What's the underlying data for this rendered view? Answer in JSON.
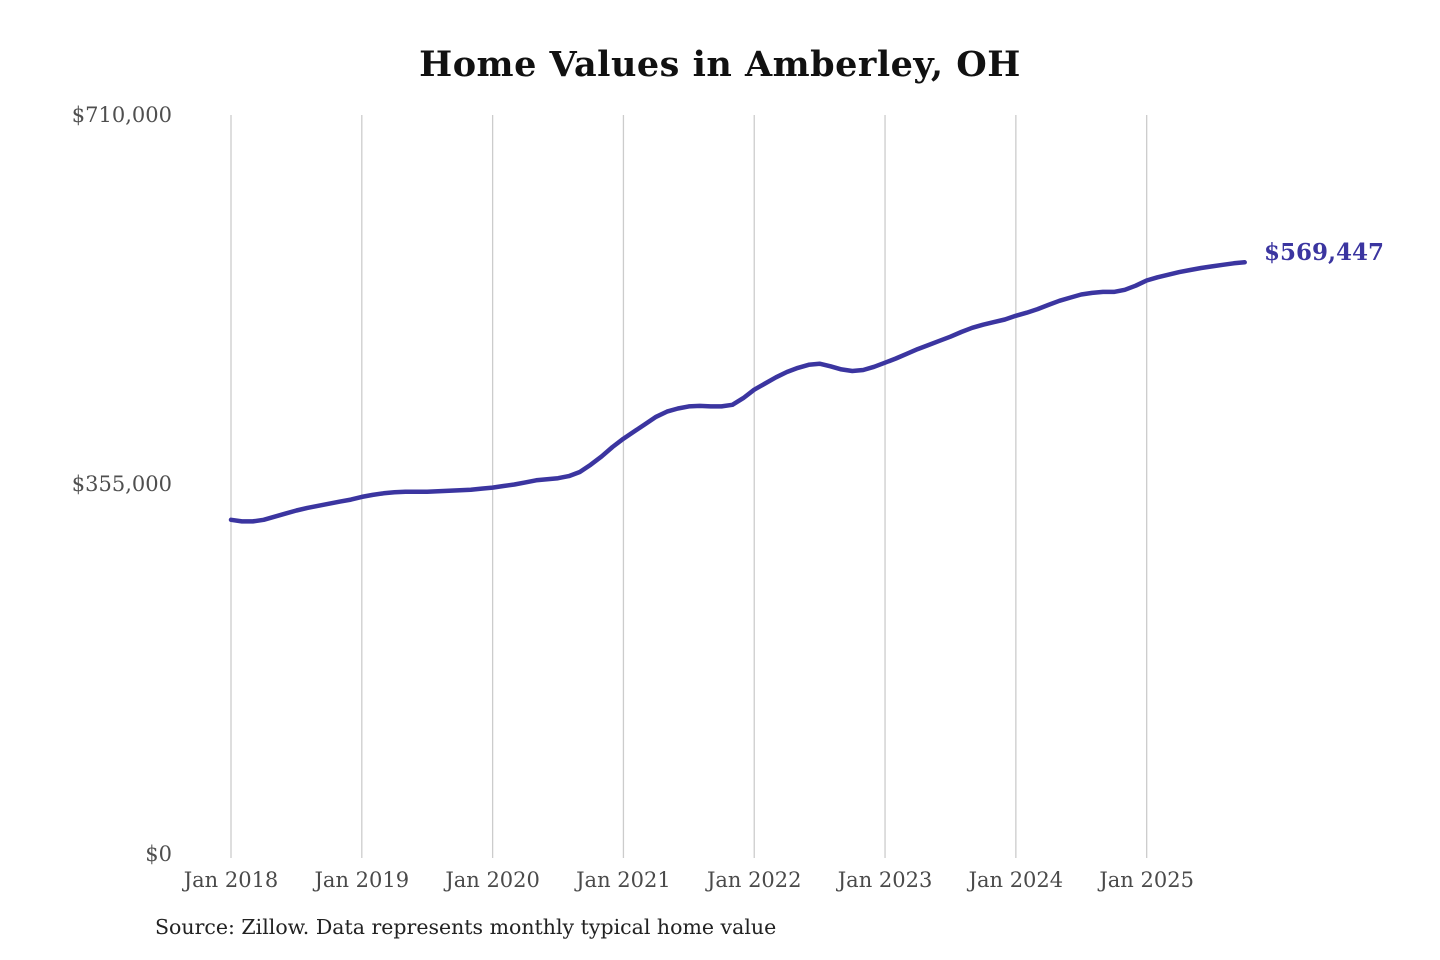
{
  "title": "Home Values in Amberley, OH",
  "end_label": "$569,447",
  "source_note": "Source: Zillow. Data represents monthly typical home value",
  "colors": {
    "line": "#3b35a0",
    "grid": "#cccccc",
    "title": "#111111",
    "axis_label": "#4a4a4a",
    "end_label": "#3b35a0",
    "background": "#ffffff"
  },
  "chart_data": {
    "type": "line",
    "title": "Home Values in Amberley, OH",
    "xlabel": "",
    "ylabel": "",
    "ylim": [
      0,
      710000
    ],
    "grid": "vertical-only",
    "legend": "none",
    "y_tick_labels": [
      "$0",
      "$355,000",
      "$710,000"
    ],
    "y_tick_values": [
      0,
      355000,
      710000
    ],
    "x_tick_labels": [
      "Jan 2018",
      "Jan 2019",
      "Jan 2020",
      "Jan 2021",
      "Jan 2022",
      "Jan 2023",
      "Jan 2024",
      "Jan 2025"
    ],
    "series": [
      {
        "name": "Monthly typical home value",
        "x_start": "2018-01",
        "x_interval": "monthly",
        "final_value": 569447,
        "values": [
          322000,
          320500,
          320500,
          322000,
          325000,
          328000,
          331000,
          333500,
          335500,
          337500,
          339500,
          341500,
          344000,
          346000,
          347500,
          348500,
          349000,
          349000,
          349000,
          349500,
          350000,
          350500,
          351000,
          352000,
          353000,
          354500,
          356000,
          358000,
          360000,
          361000,
          362000,
          364000,
          368000,
          375000,
          383000,
          392000,
          400000,
          407000,
          414000,
          421000,
          426000,
          429000,
          431000,
          431500,
          431000,
          431000,
          432500,
          439000,
          447000,
          453000,
          459000,
          464000,
          468000,
          471000,
          472000,
          469500,
          466500,
          465000,
          466000,
          469000,
          473000,
          477000,
          481500,
          486000,
          490000,
          494000,
          498000,
          502500,
          506500,
          509500,
          512000,
          514500,
          518000,
          521000,
          524500,
          528500,
          532500,
          535500,
          538500,
          540000,
          541000,
          541000,
          543000,
          547000,
          552000,
          555000,
          557500,
          560000,
          562000,
          564000,
          565500,
          567000,
          568500,
          569447
        ]
      }
    ]
  }
}
